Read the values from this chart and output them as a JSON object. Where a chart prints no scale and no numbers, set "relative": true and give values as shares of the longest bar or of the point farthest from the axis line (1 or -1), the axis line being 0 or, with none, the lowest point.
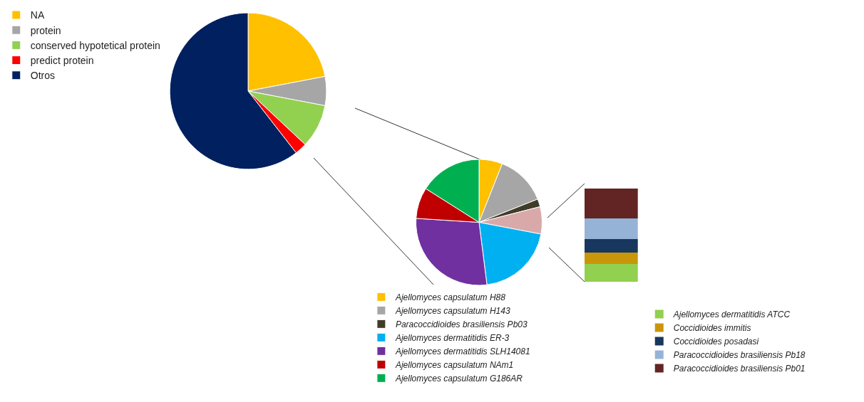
{
  "chart_data": [
    {
      "type": "pie",
      "categories": [
        "NA",
        "protein",
        "conserved hypotetical protein",
        "predict protein",
        "Otros"
      ],
      "values": [
        22,
        6,
        9,
        2.5,
        60.5
      ],
      "colors": [
        "#ffc000",
        "#a6a6a6",
        "#92d050",
        "#ff0000",
        "#002060"
      ],
      "legend": "left"
    },
    {
      "type": "pie",
      "categories": [
        "Ajellomyces capsulatum H88",
        "Ajellomyces capsulatum H143",
        "Paracoccidioides brasiliensis Pb03",
        null,
        "Ajellomyces dermatitidis ER-3",
        "Ajellomyces dermatitidis SLH14081",
        "Ajellomyces capsulatum NAm1",
        "Ajellomyces capsulatum G186AR"
      ],
      "values": [
        6,
        13,
        2,
        7,
        20,
        28,
        8,
        16
      ],
      "colors": [
        "#ffc000",
        "#a6a6a6",
        "#403c28",
        "#d9a9a9",
        "#00b0f0",
        "#7030a0",
        "#c00000",
        "#00b050"
      ],
      "legend": "bottom"
    },
    {
      "type": "bar",
      "stacked": true,
      "relative": true,
      "categories": [
        null
      ],
      "legend": "bottom",
      "series": [
        {
          "name": "Ajellomyces dermatitidis ATCC",
          "color": "#92d050",
          "values": [
            0.19
          ]
        },
        {
          "name": "Coccidioides immitis",
          "color": "#c9960a",
          "values": [
            0.12
          ]
        },
        {
          "name": "Coccidioides posadasi",
          "color": "#17375e",
          "values": [
            0.15
          ]
        },
        {
          "name": "Paracoccidioides brasiliensis Pb18",
          "color": "#95b3d7",
          "values": [
            0.22
          ]
        },
        {
          "name": "Paracoccidioides brasiliensis Pb01",
          "color": "#632523",
          "values": [
            0.32
          ]
        }
      ]
    }
  ]
}
